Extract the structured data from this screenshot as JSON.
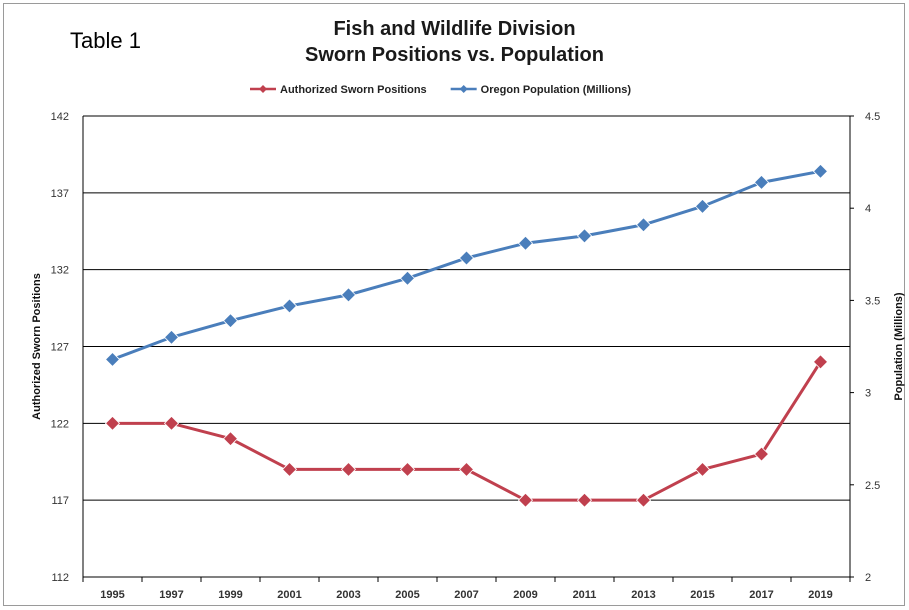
{
  "page": {
    "label": "Table 1"
  },
  "chart_data": {
    "type": "line",
    "title": "Fish and Wildlife Division",
    "subtitle": "Sworn Positions vs. Population",
    "xlabel": "",
    "ylabel": "Authorized Sworn Positions",
    "y2label": "Population (Millions)",
    "categories": [
      "1995",
      "1997",
      "1999",
      "2001",
      "2003",
      "2005",
      "2007",
      "2009",
      "2011",
      "2013",
      "2015",
      "2017",
      "2019"
    ],
    "ylim": [
      112,
      142
    ],
    "yticks": [
      "112",
      "117",
      "122",
      "127",
      "132",
      "137",
      "142"
    ],
    "y2lim": [
      2,
      4.5
    ],
    "y2ticks": [
      "2",
      "2.5",
      "3",
      "3.5",
      "4",
      "4.5"
    ],
    "grid": true,
    "legend_position": "top",
    "series": [
      {
        "name": "Authorized Sworn Positions",
        "axis": "left",
        "color": "#c0404e",
        "values": [
          122,
          122,
          121,
          119,
          119,
          119,
          119,
          117,
          117,
          117,
          119,
          120,
          126
        ]
      },
      {
        "name": "Oregon Population (Millions)",
        "axis": "right",
        "color": "#4a7ebb",
        "values": [
          3.18,
          3.3,
          3.39,
          3.47,
          3.53,
          3.62,
          3.73,
          3.81,
          3.85,
          3.91,
          4.01,
          4.14,
          4.2
        ]
      }
    ]
  }
}
